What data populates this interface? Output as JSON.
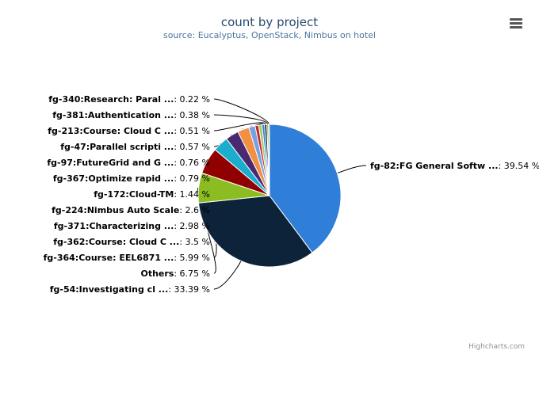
{
  "chart_data": {
    "type": "pie",
    "title": "count by project",
    "subtitle": "source: Eucalyptus, OpenStack, Nimbus on hotel",
    "value_suffix": " %",
    "slices": [
      {
        "name": "fg-82:FG General Softw ...",
        "value": 39.54,
        "value_text": "39.54",
        "color": "#2f7ed8"
      },
      {
        "name": "fg-54:Investigating cl ...",
        "value": 33.39,
        "value_text": "33.39",
        "color": "#0d233a"
      },
      {
        "name": "Others",
        "value": 6.75,
        "value_text": "6.75",
        "color": "#8bbc21"
      },
      {
        "name": "fg-364:Course: EEL6871 ...",
        "value": 5.99,
        "value_text": "5.99",
        "color": "#910000"
      },
      {
        "name": "fg-362:Course: Cloud C ...",
        "value": 3.5,
        "value_text": "3.5",
        "color": "#1aadce"
      },
      {
        "name": "fg-371:Characterizing ...",
        "value": 2.98,
        "value_text": "2.98",
        "color": "#492970"
      },
      {
        "name": "fg-224:Nimbus Auto Scale",
        "value": 2.6,
        "value_text": "2.6",
        "color": "#f28f43"
      },
      {
        "name": "fg-172:Cloud-TM",
        "value": 1.44,
        "value_text": "1.44",
        "color": "#77a1e5"
      },
      {
        "name": "fg-367:Optimize rapid ...",
        "value": 0.79,
        "value_text": "0.79",
        "color": "#c42525"
      },
      {
        "name": "fg-97:FutureGrid and G ...",
        "value": 0.76,
        "value_text": "0.76",
        "color": "#a6c96a"
      },
      {
        "name": "fg-47:Parallel scripti ...",
        "value": 0.57,
        "value_text": "0.57",
        "color": "#2f7ed8"
      },
      {
        "name": "fg-213:Course: Cloud C ...",
        "value": 0.51,
        "value_text": "0.51",
        "color": "#0d233a"
      },
      {
        "name": "fg-381:Authentication ...",
        "value": 0.38,
        "value_text": "0.38",
        "color": "#8bbc21"
      },
      {
        "name": "fg-340:Research: Paral ...",
        "value": 0.22,
        "value_text": "0.22",
        "color": "#910000"
      }
    ],
    "legend": "none"
  },
  "credits": "Highcharts.com",
  "menu_icon": "hamburger-menu-icon"
}
